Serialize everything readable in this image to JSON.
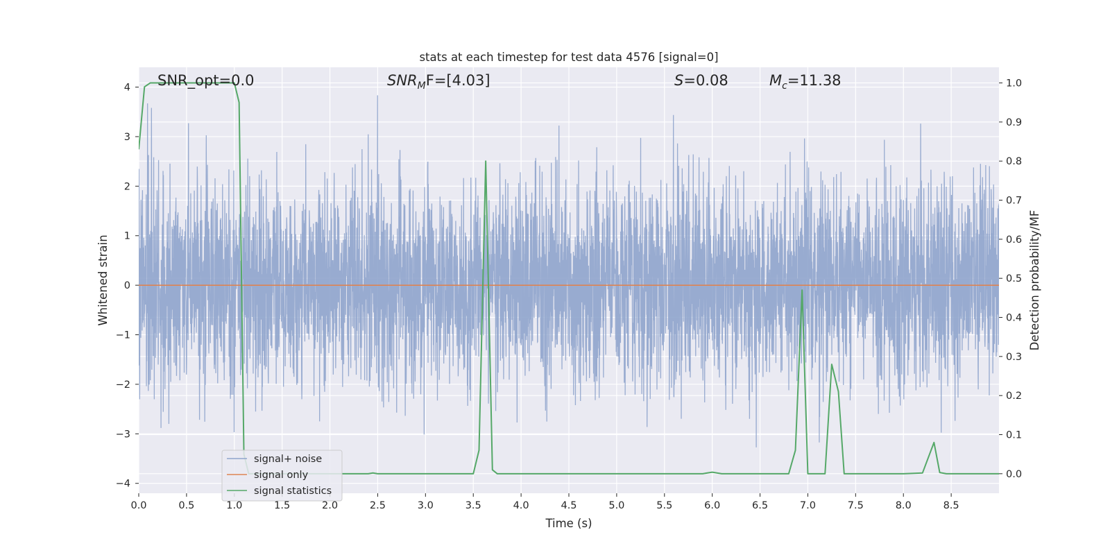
{
  "chart_data": {
    "type": "line",
    "title": "stats at each timestep for test data 4576 [signal=0]",
    "xlabel": "Time (s)",
    "ylabel_left": "Whitened strain",
    "ylabel_right": "Detection probability/MF",
    "xlim": [
      0.0,
      9.0
    ],
    "ylim_left": [
      -4.2,
      4.4
    ],
    "ylim_right": [
      -0.05,
      1.04
    ],
    "x_ticks": [
      0.0,
      0.5,
      1.0,
      1.5,
      2.0,
      2.5,
      3.0,
      3.5,
      4.0,
      4.5,
      5.0,
      5.5,
      6.0,
      6.5,
      7.0,
      7.5,
      8.0,
      8.5
    ],
    "x_tick_labels": [
      "0.0",
      "0.5",
      "1.0",
      "1.5",
      "2.0",
      "2.5",
      "3.0",
      "3.5",
      "4.0",
      "4.5",
      "5.0",
      "5.5",
      "6.0",
      "6.5",
      "7.0",
      "7.5",
      "8.0",
      "8.5"
    ],
    "y_left_ticks": [
      -4,
      -3,
      -2,
      -1,
      0,
      1,
      2,
      3,
      4
    ],
    "y_left_tick_labels": [
      "−4",
      "−3",
      "−2",
      "−1",
      "0",
      "1",
      "2",
      "3",
      "4"
    ],
    "y_right_ticks": [
      0.0,
      0.1,
      0.2,
      0.3,
      0.4,
      0.5,
      0.6,
      0.7,
      0.8,
      0.9,
      1.0
    ],
    "y_right_tick_labels": [
      "0.0",
      "0.1",
      "0.2",
      "0.3",
      "0.4",
      "0.5",
      "0.6",
      "0.7",
      "0.8",
      "0.9",
      "1.0"
    ],
    "grid": true,
    "legend_placement": "lower-left",
    "annotations": {
      "snr_opt": "SNR_opt=0.0",
      "snr_mf_label": "SNR",
      "snr_mf_sub": "M",
      "snr_mf_value": "F=[4.03]",
      "s_label": "S",
      "s_value": "=0.08",
      "mc_label": "M",
      "mc_sub": "c",
      "mc_value": "=11.38"
    },
    "series": [
      {
        "name": "signal+ noise",
        "color": "#8fa4cc",
        "axis": "left",
        "noise_std": 1.0,
        "noise_range": [
          -3.9,
          4.0
        ]
      },
      {
        "name": "signal only",
        "color": "#dd8452",
        "axis": "left",
        "x": [
          0.0,
          9.0
        ],
        "y": [
          0.0,
          0.0
        ]
      },
      {
        "name": "signal statistics",
        "color": "#55a868",
        "axis": "right",
        "x": [
          0.0,
          0.06,
          0.12,
          0.2,
          0.5,
          0.8,
          1.0,
          1.05,
          1.1,
          1.15,
          1.25,
          2.0,
          2.4,
          2.45,
          2.5,
          3.4,
          3.5,
          3.56,
          3.63,
          3.7,
          3.75,
          4.0,
          5.9,
          6.0,
          6.1,
          6.8,
          6.87,
          6.94,
          7.0,
          7.1,
          7.18,
          7.25,
          7.32,
          7.38,
          7.45,
          8.0,
          8.2,
          8.32,
          8.38,
          8.45,
          9.0
        ],
        "y": [
          0.83,
          0.99,
          1.0,
          1.0,
          1.0,
          1.0,
          1.0,
          0.95,
          0.05,
          0.0,
          0.0,
          0.0,
          0.0,
          0.002,
          0.0,
          0.0,
          0.0,
          0.06,
          0.8,
          0.01,
          0.0,
          0.0,
          0.0,
          0.004,
          0.0,
          0.0,
          0.06,
          0.47,
          0.0,
          0.0,
          0.0,
          0.28,
          0.21,
          0.0,
          0.0,
          0.0,
          0.002,
          0.08,
          0.003,
          0.0,
          0.0
        ]
      }
    ]
  }
}
